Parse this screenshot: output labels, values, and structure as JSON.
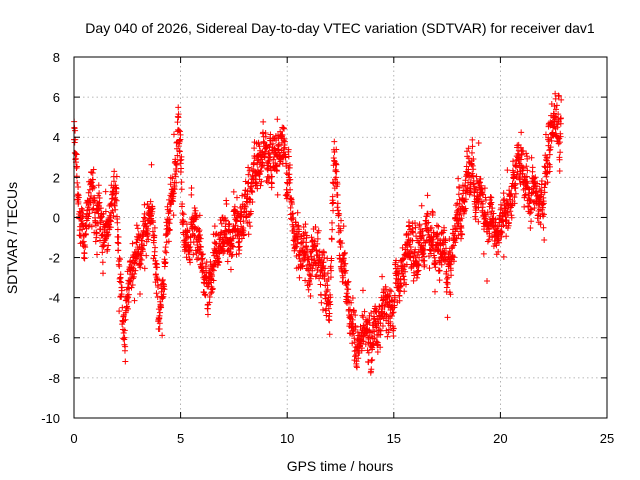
{
  "chart_data": {
    "type": "scatter",
    "title": "Day 040 of 2026, Sidereal Day-to-day VTEC variation (SDTVAR) for receiver dav1",
    "xlabel": "GPS time / hours",
    "ylabel": "SDTVAR / TECUs",
    "xlim": [
      0,
      25
    ],
    "ylim": [
      -10,
      8
    ],
    "xticks": [
      0,
      5,
      10,
      15,
      20,
      25
    ],
    "yticks": [
      -10,
      -8,
      -6,
      -4,
      -2,
      0,
      2,
      4,
      6,
      8
    ],
    "xtick_labels": [
      "0",
      "5",
      "10",
      "15",
      "20",
      "25"
    ],
    "ytick_labels": [
      "-10",
      "-8",
      "-6",
      "-4",
      "-2",
      "0",
      "2",
      "4",
      "6",
      "8"
    ],
    "grid": true,
    "marker": "+",
    "color": "#ff0000",
    "series": [
      {
        "name": "SDTVAR",
        "x_start": 0.0,
        "x_step": 0.0083,
        "noise_amplitude": 1.6,
        "trend": [
          [
            0.0,
            4.0
          ],
          [
            0.2,
            0.5
          ],
          [
            0.5,
            -1.5
          ],
          [
            0.8,
            1.5
          ],
          [
            1.2,
            0.0
          ],
          [
            1.6,
            -1.0
          ],
          [
            2.0,
            2.0
          ],
          [
            2.3,
            -6.0
          ],
          [
            2.7,
            -2.5
          ],
          [
            3.2,
            -1.0
          ],
          [
            3.6,
            0.5
          ],
          [
            4.0,
            -5.0
          ],
          [
            4.3,
            -1.0
          ],
          [
            4.6,
            1.0
          ],
          [
            4.9,
            4.5
          ],
          [
            5.2,
            -1.5
          ],
          [
            5.6,
            -0.5
          ],
          [
            6.0,
            -2.5
          ],
          [
            6.5,
            -3.5
          ],
          [
            6.8,
            -2.0
          ],
          [
            7.2,
            -1.5
          ],
          [
            7.6,
            -0.5
          ],
          [
            8.0,
            0.5
          ],
          [
            8.5,
            2.0
          ],
          [
            9.0,
            3.0
          ],
          [
            9.5,
            3.0
          ],
          [
            9.9,
            3.5
          ],
          [
            10.3,
            0.0
          ],
          [
            10.7,
            -2.5
          ],
          [
            11.2,
            -1.5
          ],
          [
            11.6,
            -2.0
          ],
          [
            12.0,
            -5.0
          ],
          [
            12.2,
            3.0
          ],
          [
            12.5,
            -1.0
          ],
          [
            12.8,
            -4.0
          ],
          [
            13.2,
            -6.5
          ],
          [
            13.6,
            -5.5
          ],
          [
            14.0,
            -6.0
          ],
          [
            14.5,
            -5.0
          ],
          [
            15.0,
            -3.5
          ],
          [
            15.5,
            -2.5
          ],
          [
            16.0,
            -1.5
          ],
          [
            16.5,
            -0.5
          ],
          [
            17.0,
            -1.5
          ],
          [
            17.5,
            -2.5
          ],
          [
            18.0,
            0.0
          ],
          [
            18.5,
            2.5
          ],
          [
            19.0,
            1.0
          ],
          [
            19.5,
            0.0
          ],
          [
            20.0,
            -1.0
          ],
          [
            20.5,
            1.0
          ],
          [
            21.0,
            2.5
          ],
          [
            21.5,
            1.0
          ],
          [
            22.0,
            0.5
          ],
          [
            22.4,
            5.0
          ],
          [
            22.8,
            4.5
          ]
        ],
        "x_end": 22.85
      }
    ]
  }
}
